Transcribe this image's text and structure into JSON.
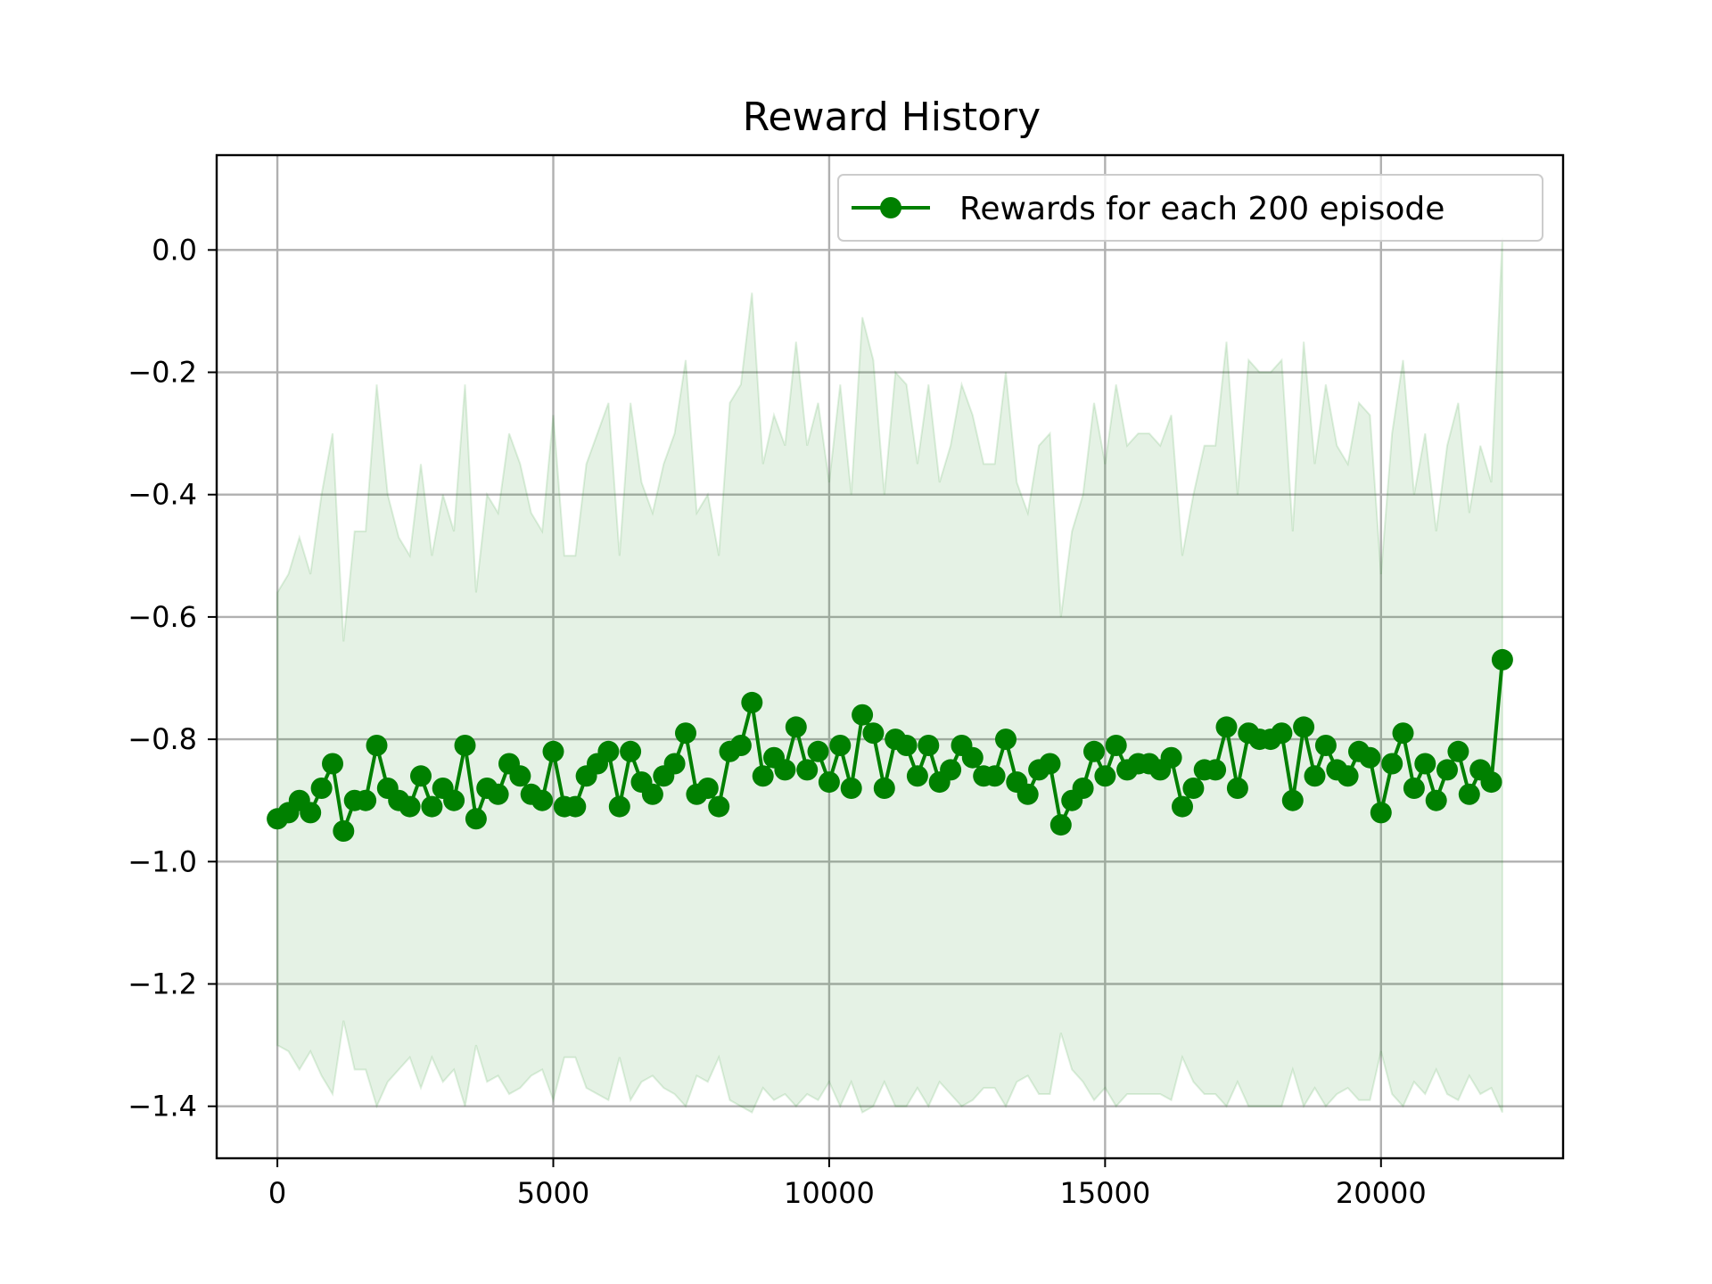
{
  "chart_data": {
    "type": "line",
    "title": "Reward History",
    "xlabel": "",
    "ylabel": "",
    "xlim": [
      -1100,
      23300
    ],
    "ylim": [
      -1.485,
      0.155
    ],
    "xticks": [
      0,
      5000,
      10000,
      15000,
      20000
    ],
    "xtick_labels": [
      "0",
      "5000",
      "10000",
      "15000",
      "20000"
    ],
    "yticks": [
      0.0,
      -0.2,
      -0.4,
      -0.6,
      -0.8,
      -1.0,
      -1.2,
      -1.4
    ],
    "ytick_labels": [
      "0.0",
      "−0.2",
      "−0.4",
      "−0.6",
      "−0.8",
      "−1.0",
      "−1.2",
      "−1.4"
    ],
    "grid": true,
    "legend_position": "upper-right",
    "colors": {
      "line": "#008000",
      "band": "#008000",
      "band_opacity": 0.1
    },
    "x": [
      0,
      200,
      400,
      600,
      800,
      1000,
      1200,
      1400,
      1600,
      1800,
      2000,
      2200,
      2400,
      2600,
      2800,
      3000,
      3200,
      3400,
      3600,
      3800,
      4000,
      4200,
      4400,
      4600,
      4800,
      5000,
      5200,
      5400,
      5600,
      5800,
      6000,
      6200,
      6400,
      6600,
      6800,
      7000,
      7200,
      7400,
      7600,
      7800,
      8000,
      8200,
      8400,
      8600,
      8800,
      9000,
      9200,
      9400,
      9600,
      9800,
      10000,
      10200,
      10400,
      10600,
      10800,
      11000,
      11200,
      11400,
      11600,
      11800,
      12000,
      12200,
      12400,
      12600,
      12800,
      13000,
      13200,
      13400,
      13600,
      13800,
      14000,
      14200,
      14400,
      14600,
      14800,
      15000,
      15200,
      15400,
      15600,
      15800,
      16000,
      16200,
      16400,
      16600,
      16800,
      17000,
      17200,
      17400,
      17600,
      17800,
      18000,
      18200,
      18400,
      18600,
      18800,
      19000,
      19200,
      19400,
      19600,
      19800,
      20000,
      20200,
      20400,
      20600,
      20800,
      21000,
      21200,
      21400,
      21600,
      21800,
      22000,
      22200
    ],
    "series": [
      {
        "name": "Rewards for each 200 episode",
        "values": [
          -0.93,
          -0.92,
          -0.9,
          -0.92,
          -0.88,
          -0.84,
          -0.95,
          -0.9,
          -0.9,
          -0.81,
          -0.88,
          -0.9,
          -0.91,
          -0.86,
          -0.91,
          -0.88,
          -0.9,
          -0.81,
          -0.93,
          -0.88,
          -0.89,
          -0.84,
          -0.86,
          -0.89,
          -0.9,
          -0.82,
          -0.91,
          -0.91,
          -0.86,
          -0.84,
          -0.82,
          -0.91,
          -0.82,
          -0.87,
          -0.89,
          -0.86,
          -0.84,
          -0.79,
          -0.89,
          -0.88,
          -0.91,
          -0.82,
          -0.81,
          -0.74,
          -0.86,
          -0.83,
          -0.85,
          -0.78,
          -0.85,
          -0.82,
          -0.87,
          -0.81,
          -0.88,
          -0.76,
          -0.79,
          -0.88,
          -0.8,
          -0.81,
          -0.86,
          -0.81,
          -0.87,
          -0.85,
          -0.81,
          -0.83,
          -0.86,
          -0.86,
          -0.8,
          -0.87,
          -0.89,
          -0.85,
          -0.84,
          -0.94,
          -0.9,
          -0.88,
          -0.82,
          -0.86,
          -0.81,
          -0.85,
          -0.84,
          -0.84,
          -0.85,
          -0.83,
          -0.91,
          -0.88,
          -0.85,
          -0.85,
          -0.78,
          -0.88,
          -0.79,
          -0.8,
          -0.8,
          -0.79,
          -0.9,
          -0.78,
          -0.86,
          -0.81,
          -0.85,
          -0.86,
          -0.82,
          -0.83,
          -0.92,
          -0.84,
          -0.79,
          -0.88,
          -0.84,
          -0.9,
          -0.85,
          -0.82,
          -0.89,
          -0.85,
          -0.87,
          -0.67
        ]
      }
    ],
    "band": {
      "upper": [
        -0.56,
        -0.53,
        -0.47,
        -0.53,
        -0.4,
        -0.3,
        -0.64,
        -0.46,
        -0.46,
        -0.22,
        -0.4,
        -0.47,
        -0.5,
        -0.35,
        -0.5,
        -0.4,
        -0.46,
        -0.22,
        -0.56,
        -0.4,
        -0.43,
        -0.3,
        -0.35,
        -0.43,
        -0.46,
        -0.27,
        -0.5,
        -0.5,
        -0.35,
        -0.3,
        -0.25,
        -0.5,
        -0.25,
        -0.38,
        -0.43,
        -0.35,
        -0.3,
        -0.18,
        -0.43,
        -0.4,
        -0.5,
        -0.25,
        -0.22,
        -0.07,
        -0.35,
        -0.27,
        -0.32,
        -0.15,
        -0.32,
        -0.25,
        -0.38,
        -0.22,
        -0.4,
        -0.11,
        -0.18,
        -0.4,
        -0.2,
        -0.22,
        -0.35,
        -0.22,
        -0.38,
        -0.32,
        -0.22,
        -0.27,
        -0.35,
        -0.35,
        -0.2,
        -0.38,
        -0.43,
        -0.32,
        -0.3,
        -0.6,
        -0.46,
        -0.4,
        -0.25,
        -0.35,
        -0.22,
        -0.32,
        -0.3,
        -0.3,
        -0.32,
        -0.27,
        -0.5,
        -0.4,
        -0.32,
        -0.32,
        -0.15,
        -0.4,
        -0.18,
        -0.2,
        -0.2,
        -0.18,
        -0.46,
        -0.15,
        -0.35,
        -0.22,
        -0.32,
        -0.35,
        -0.25,
        -0.27,
        -0.53,
        -0.3,
        -0.18,
        -0.4,
        -0.3,
        -0.46,
        -0.32,
        -0.25,
        -0.43,
        -0.32,
        -0.38,
        0.02
      ],
      "lower": [
        -1.3,
        -1.31,
        -1.34,
        -1.31,
        -1.35,
        -1.38,
        -1.26,
        -1.34,
        -1.34,
        -1.4,
        -1.36,
        -1.34,
        -1.32,
        -1.37,
        -1.32,
        -1.36,
        -1.34,
        -1.4,
        -1.3,
        -1.36,
        -1.35,
        -1.38,
        -1.37,
        -1.35,
        -1.34,
        -1.39,
        -1.32,
        -1.32,
        -1.37,
        -1.38,
        -1.39,
        -1.32,
        -1.39,
        -1.36,
        -1.35,
        -1.37,
        -1.38,
        -1.4,
        -1.35,
        -1.36,
        -1.32,
        -1.39,
        -1.4,
        -1.41,
        -1.37,
        -1.39,
        -1.38,
        -1.4,
        -1.38,
        -1.39,
        -1.36,
        -1.4,
        -1.36,
        -1.41,
        -1.4,
        -1.36,
        -1.4,
        -1.4,
        -1.37,
        -1.4,
        -1.36,
        -1.38,
        -1.4,
        -1.39,
        -1.37,
        -1.37,
        -1.4,
        -1.36,
        -1.35,
        -1.38,
        -1.38,
        -1.28,
        -1.34,
        -1.36,
        -1.39,
        -1.37,
        -1.4,
        -1.38,
        -1.38,
        -1.38,
        -1.38,
        -1.39,
        -1.32,
        -1.36,
        -1.38,
        -1.38,
        -1.4,
        -1.36,
        -1.4,
        -1.4,
        -1.4,
        -1.4,
        -1.34,
        -1.4,
        -1.37,
        -1.4,
        -1.38,
        -1.37,
        -1.39,
        -1.39,
        -1.31,
        -1.38,
        -1.4,
        -1.36,
        -1.38,
        -1.34,
        -1.38,
        -1.39,
        -1.35,
        -1.38,
        -1.37,
        -1.41
      ]
    }
  }
}
